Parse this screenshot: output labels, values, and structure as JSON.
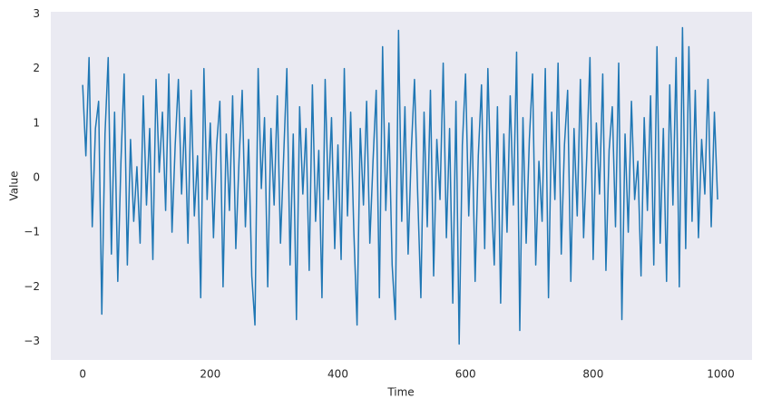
{
  "chart_data": {
    "type": "line",
    "x_label": "Time",
    "y_label": "Value",
    "x": [
      0,
      5,
      10,
      15,
      20,
      25,
      30,
      35,
      40,
      45,
      50,
      55,
      60,
      65,
      70,
      75,
      80,
      85,
      90,
      95,
      100,
      105,
      110,
      115,
      120,
      125,
      130,
      135,
      140,
      145,
      150,
      155,
      160,
      165,
      170,
      175,
      180,
      185,
      190,
      195,
      200,
      205,
      210,
      215,
      220,
      225,
      230,
      235,
      240,
      245,
      250,
      255,
      260,
      265,
      270,
      275,
      280,
      285,
      290,
      295,
      300,
      305,
      310,
      315,
      320,
      325,
      330,
      335,
      340,
      345,
      350,
      355,
      360,
      365,
      370,
      375,
      380,
      385,
      390,
      395,
      400,
      405,
      410,
      415,
      420,
      425,
      430,
      435,
      440,
      445,
      450,
      455,
      460,
      465,
      470,
      475,
      480,
      485,
      490,
      495,
      500,
      505,
      510,
      515,
      520,
      525,
      530,
      535,
      540,
      545,
      550,
      555,
      560,
      565,
      570,
      575,
      580,
      585,
      590,
      595,
      600,
      605,
      610,
      615,
      620,
      625,
      630,
      635,
      640,
      645,
      650,
      655,
      660,
      665,
      670,
      675,
      680,
      685,
      690,
      695,
      700,
      705,
      710,
      715,
      720,
      725,
      730,
      735,
      740,
      745,
      750,
      755,
      760,
      765,
      770,
      775,
      780,
      785,
      790,
      795,
      800,
      805,
      810,
      815,
      820,
      825,
      830,
      835,
      840,
      845,
      850,
      855,
      860,
      865,
      870,
      875,
      880,
      885,
      890,
      895,
      900,
      905,
      910,
      915,
      920,
      925,
      930,
      935,
      940,
      945,
      950,
      955,
      960,
      965,
      970,
      975,
      980,
      985,
      990,
      995
    ],
    "series": [
      {
        "color": "#1f77b4",
        "values": [
          1.7,
          0.4,
          2.2,
          -0.9,
          0.9,
          1.4,
          -2.5,
          0.8,
          2.2,
          -1.4,
          1.2,
          -1.9,
          0.3,
          1.9,
          -1.6,
          0.7,
          -0.8,
          0.2,
          -1.2,
          1.5,
          -0.5,
          0.9,
          -1.5,
          1.8,
          0.1,
          1.2,
          -0.6,
          1.9,
          -1.0,
          0.6,
          1.8,
          -0.3,
          1.1,
          -1.2,
          1.6,
          -0.7,
          0.4,
          -2.2,
          2.0,
          -0.4,
          1.0,
          -1.1,
          0.6,
          1.4,
          -2.0,
          0.8,
          -0.6,
          1.5,
          -1.3,
          0.3,
          1.6,
          -0.9,
          0.7,
          -1.8,
          -2.7,
          2.0,
          -0.2,
          1.1,
          -2.0,
          0.9,
          -0.5,
          1.5,
          -1.2,
          0.4,
          2.0,
          -1.6,
          0.8,
          -2.6,
          1.3,
          -0.3,
          0.9,
          -1.7,
          1.7,
          -0.8,
          0.5,
          -2.2,
          1.8,
          -0.4,
          1.1,
          -1.3,
          0.6,
          -1.5,
          2.0,
          -0.7,
          1.2,
          -1.0,
          -2.7,
          0.9,
          -0.5,
          1.4,
          -1.2,
          0.3,
          1.6,
          -2.2,
          2.4,
          -0.6,
          1.0,
          -1.6,
          -2.6,
          2.7,
          -0.8,
          1.3,
          -1.4,
          0.5,
          1.8,
          -0.3,
          -2.2,
          1.2,
          -0.9,
          1.6,
          -1.8,
          0.7,
          -0.4,
          2.1,
          -1.1,
          0.9,
          -2.3,
          1.4,
          -3.05,
          0.6,
          1.9,
          -0.7,
          1.1,
          -1.9,
          0.4,
          1.7,
          -1.3,
          2.0,
          -0.2,
          -1.6,
          1.3,
          -2.3,
          0.8,
          -1.0,
          1.5,
          -0.5,
          2.3,
          -2.8,
          1.1,
          -1.2,
          0.7,
          1.9,
          -1.6,
          0.3,
          -0.8,
          2.0,
          -2.2,
          1.2,
          -0.4,
          2.1,
          -1.4,
          0.6,
          1.6,
          -1.9,
          0.9,
          -0.7,
          1.8,
          -1.1,
          0.4,
          2.2,
          -1.5,
          1.0,
          -0.3,
          1.9,
          -1.7,
          0.5,
          1.3,
          -0.9,
          2.1,
          -2.6,
          0.8,
          -1.0,
          1.4,
          -0.4,
          0.3,
          -1.8,
          1.1,
          -0.6,
          1.5,
          -1.6,
          2.4,
          -1.2,
          0.9,
          -1.9,
          1.7,
          -0.5,
          2.2,
          -2.0,
          2.75,
          -1.3,
          2.4,
          -0.8,
          1.6,
          -1.1,
          0.7,
          -0.3,
          1.8,
          -0.9,
          1.2,
          -0.4
        ]
      }
    ],
    "xlim": [
      -49.95,
      1048.95
    ],
    "xticks": [
      0,
      200,
      400,
      600,
      800,
      1000
    ],
    "ylim": [
      -3.34,
      3.04
    ],
    "yticks": [
      {
        "value": -3,
        "label": "−3"
      },
      {
        "value": -2,
        "label": "−2"
      },
      {
        "value": -1,
        "label": "−1"
      },
      0,
      1,
      2,
      3
    ],
    "grid": false,
    "background": "#eaeaf2"
  }
}
